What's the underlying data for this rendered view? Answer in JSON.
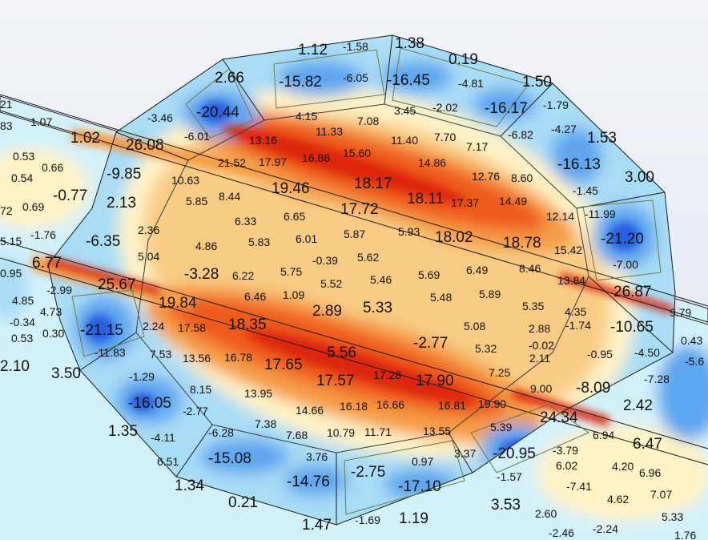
{
  "contour_plot": {
    "colors": {
      "blue_deep": "#2c5fe0",
      "blue": "#5da6f0",
      "blue_light": "#a9dcf5",
      "cyan_pale": "#d3f1fb",
      "cream": "#fff2c6",
      "orange_light": "#f9cc85",
      "orange": "#f59b45",
      "orange_deep": "#ee5a1c",
      "red": "#dd2810"
    },
    "labels_large": [
      "1.12",
      "1.38",
      "2.66",
      "-15.82",
      "-16.45",
      "0.19",
      "1.50",
      "-20.44",
      "-16.17",
      "1.02",
      "26.08",
      "-9.85",
      "1.53",
      "-16.13",
      "3.00",
      "19.46",
      "18.17",
      "18.11",
      "17.72",
      "-0.77",
      "2.13",
      "18.02",
      "18.78",
      "-21.20",
      "-6.35",
      "6.77",
      "-3.28",
      "25.67",
      "26.87",
      "19.84",
      "18.35",
      "2.89",
      "5.33",
      "-21.15",
      "-10.65",
      "5.56",
      "-2.77",
      "17.65",
      "17.57",
      "17.90",
      "2.10",
      "3.50",
      "-8.09",
      "2.42",
      "-16.05",
      "24.34",
      "1.35",
      "-15.08",
      "-20.95",
      "6.47",
      "-14.76",
      "-2.75",
      "-17.10",
      "1.34",
      "3.53",
      "0.21",
      "1.47",
      "1.19"
    ],
    "labels_small": [
      "-1.58",
      "-6.05",
      "-4.81",
      "1.07",
      "-3.46",
      "4.15",
      "3.45",
      "-2.02",
      "-1.79",
      "-6.01",
      "7.08",
      "11.33",
      "7.70",
      "-6.82",
      "-4.27",
      "13.16",
      "11.40",
      "7.17",
      "0.53",
      "21.52",
      "17.97",
      "16.86",
      "15.60",
      "14.86",
      "0.66",
      "0.54",
      "10.63",
      "12.76",
      "8.60",
      "-1.45",
      "5.85",
      "8.44",
      "14.49",
      "-11.99",
      "0.69",
      "6.33",
      "6.65",
      "17.37",
      "12.14",
      "-1.76",
      "2.36",
      "6.01",
      "5.87",
      "5.93",
      "15.42",
      "4.86",
      "5.83",
      "5.04",
      "-0.39",
      "5.62",
      "6.49",
      "8.46",
      "-7.00",
      "6.22",
      "5.75",
      "5.52",
      "5.46",
      "5.69",
      "-2.99",
      "13.84",
      "4.85",
      "4.73",
      "6.46",
      "1.09",
      "5.48",
      "5.89",
      "5.35",
      "4.35",
      "9.79",
      "-0.34",
      "0.30",
      "2.24",
      "17.58",
      "5.08",
      "2.88",
      "-1.74",
      "0.53",
      "-0.02",
      "0.43",
      "-11.83",
      "7.53",
      "13.56",
      "16.78",
      "5.32",
      "2.11",
      "-0.95",
      "-4.50",
      "-5.6",
      "7.25",
      "-7.28",
      "-1.29",
      "8.15",
      "13.95",
      "17.28",
      "9.00",
      "-2.77",
      "14.66",
      "16.18",
      "16.66",
      "16.81",
      "19.90",
      "-6.28",
      "7.38",
      "5.39",
      "-4.11",
      "7.68",
      "10.79",
      "11.71",
      "13.55",
      "6.94",
      "-3.79",
      "3.76",
      "3.37",
      "0.97",
      "6.02",
      "6.51",
      "-1.57",
      "-7.41",
      "4.20",
      "6.96",
      "7.07",
      "4.62",
      "-1.69",
      "2.60",
      "-2.46",
      "-2.24",
      "5.33",
      "1.76",
      "21",
      "83",
      "72",
      "5.15",
      "0.95"
    ]
  }
}
